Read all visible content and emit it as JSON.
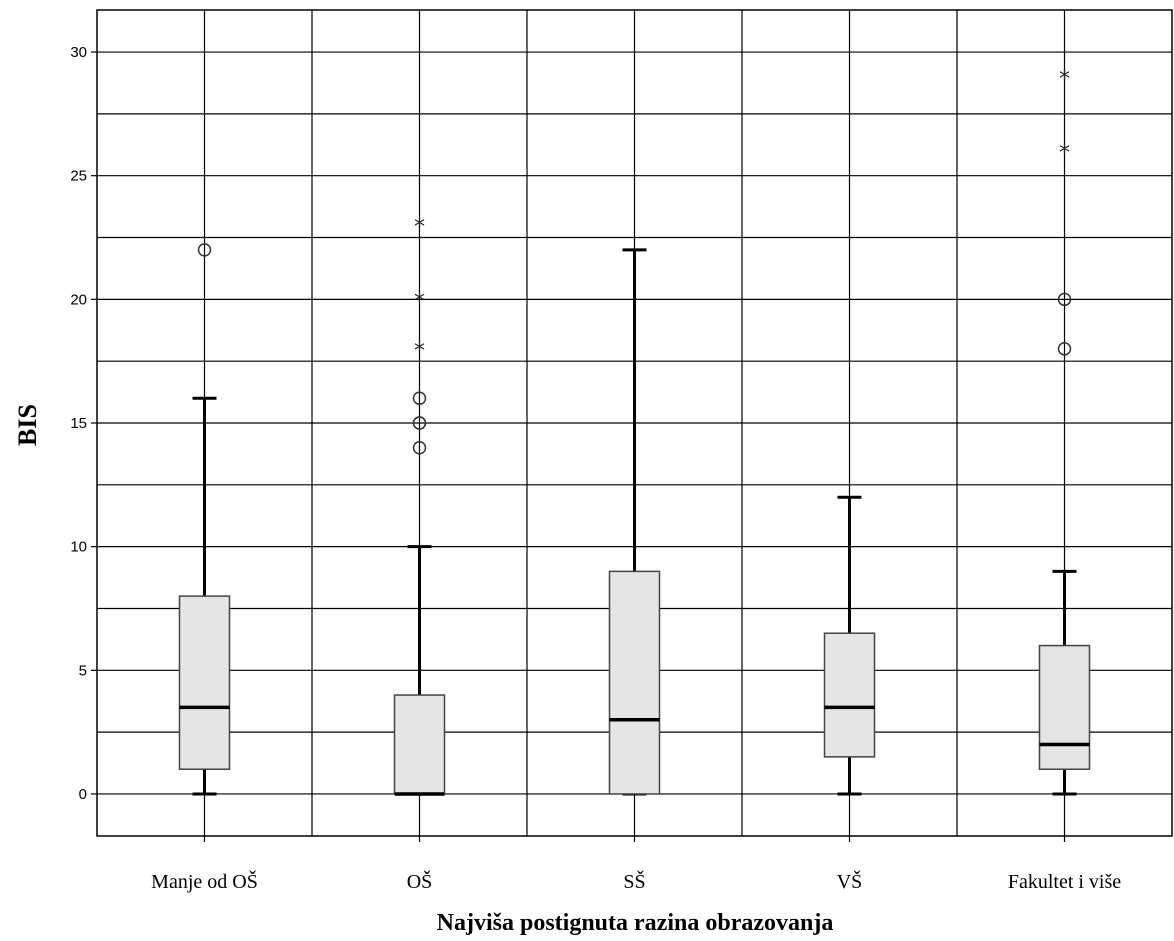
{
  "chart_data": {
    "type": "boxplot",
    "xlabel": "Najviša postignuta razina obrazovanja",
    "ylabel": "BIS",
    "ylim": [
      -1.7,
      31.7
    ],
    "yticks": [
      0,
      5,
      10,
      15,
      20,
      25,
      30
    ],
    "grid": true,
    "categories": [
      "Manje od OŠ",
      "OŠ",
      "SŠ",
      "VŠ",
      "Fakultet i više"
    ],
    "boxes": [
      {
        "category": "Manje od OŠ",
        "min": 0,
        "q1": 1,
        "median": 3.5,
        "q3": 8,
        "max": 16,
        "outliers": [
          22
        ],
        "extremes": []
      },
      {
        "category": "OŠ",
        "min": 0,
        "q1": 0,
        "median": 0,
        "q3": 4,
        "max": 10,
        "outliers": [
          14,
          15,
          15,
          16
        ],
        "extremes": [
          18,
          20,
          23
        ]
      },
      {
        "category": "SŠ",
        "min": 0,
        "q1": 0,
        "median": 3,
        "q3": 9,
        "max": 22,
        "outliers": [],
        "extremes": []
      },
      {
        "category": "VŠ",
        "min": 0,
        "q1": 1.5,
        "median": 3.5,
        "q3": 6.5,
        "max": 12,
        "outliers": [],
        "extremes": []
      },
      {
        "category": "Fakultet i više",
        "min": 0,
        "q1": 1,
        "median": 2,
        "q3": 6,
        "max": 9,
        "outliers": [
          18,
          20
        ],
        "extremes": [
          26,
          29
        ]
      }
    ],
    "colors": {
      "box_fill": "#e5e5e5",
      "box_stroke": "#444444",
      "line": "#000000",
      "grid": "#000000"
    }
  }
}
